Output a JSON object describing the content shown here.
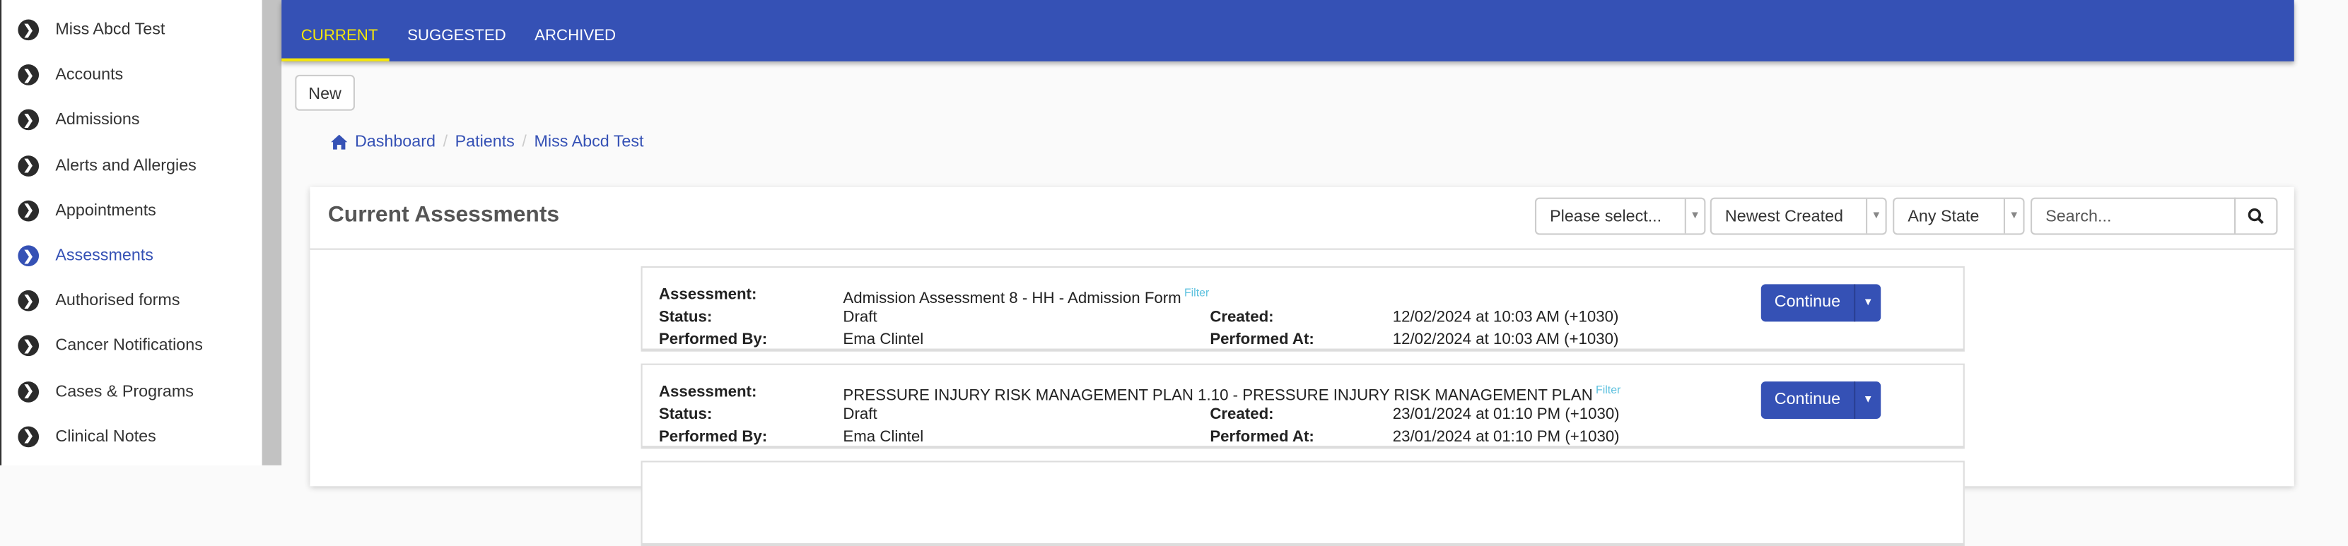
{
  "sidebar": {
    "items": [
      {
        "label": "Miss Abcd Test",
        "active": false
      },
      {
        "label": "Accounts",
        "active": false
      },
      {
        "label": "Admissions",
        "active": false
      },
      {
        "label": "Alerts and Allergies",
        "active": false
      },
      {
        "label": "Appointments",
        "active": false
      },
      {
        "label": "Assessments",
        "active": true
      },
      {
        "label": "Authorised forms",
        "active": false
      },
      {
        "label": "Cancer Notifications",
        "active": false
      },
      {
        "label": "Cases & Programs",
        "active": false
      },
      {
        "label": "Clinical Notes",
        "active": false
      }
    ]
  },
  "tabs": [
    {
      "label": "CURRENT",
      "active": true
    },
    {
      "label": "SUGGESTED"
    },
    {
      "label": "ARCHIVED"
    }
  ],
  "toolbar": {
    "new_label": "New"
  },
  "breadcrumb": [
    "Dashboard",
    "Patients",
    "Miss Abcd Test"
  ],
  "panel": {
    "title": "Current Assessments",
    "filters": {
      "type": "Please select...",
      "sort": "Newest Created",
      "state": "Any State",
      "search_placeholder": "Search..."
    },
    "labels": {
      "assessment": "Assessment:",
      "status": "Status:",
      "performed_by": "Performed By:",
      "created": "Created:",
      "performed_at": "Performed At:",
      "filter": "Filter",
      "continue": "Continue"
    },
    "assessments": [
      {
        "assessment": "Admission Assessment 8 - HH - Admission Form",
        "status": "Draft",
        "performed_by": "Ema Clintel",
        "created": "12/02/2024 at 10:03 AM (+1030)",
        "performed_at": "12/02/2024 at 10:03 AM (+1030)"
      },
      {
        "assessment": "PRESSURE INJURY RISK MANAGEMENT PLAN 1.10 - PRESSURE INJURY RISK MANAGEMENT PLAN",
        "status": "Draft",
        "performed_by": "Ema Clintel",
        "created": "23/01/2024 at 01:10 PM (+1030)",
        "performed_at": "23/01/2024 at 01:10 PM (+1030)"
      }
    ]
  },
  "colors": {
    "primary": "#3551b5",
    "active_tab": "#f5e60a",
    "filter_link": "#5bc0de"
  }
}
